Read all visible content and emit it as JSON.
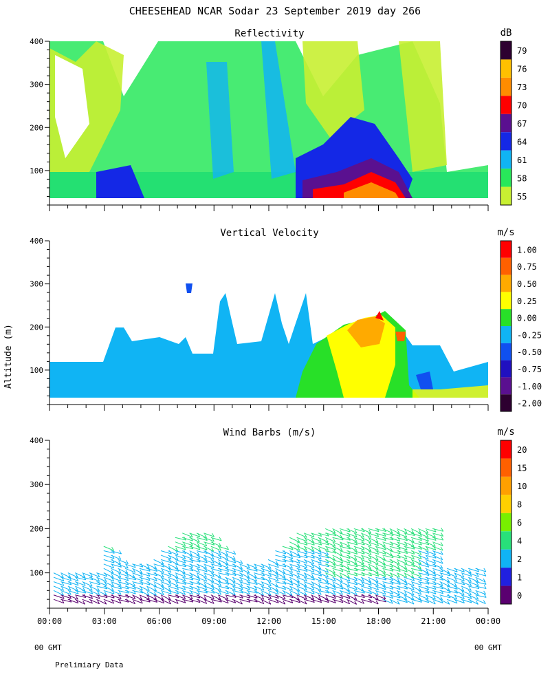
{
  "title": "CHEESEHEAD  NCAR Sodar  23 September 2019  day 266",
  "footer_left": "00 GMT",
  "footer_right": "00 GMT",
  "preliminary": "Prelimiary Data",
  "xlabel": "UTC",
  "ylabel": "Altitude (m)",
  "chart_data": [
    {
      "type": "heatmap",
      "title": "Reflectivity",
      "unit": "dB",
      "x_ticks": [
        "00:00",
        "03:00",
        "06:00",
        "09:00",
        "12:00",
        "15:00",
        "18:00",
        "21:00",
        "00:00"
      ],
      "y_ticks": [
        100,
        200,
        300,
        400
      ],
      "ylim": [
        20,
        400
      ],
      "colorbar": {
        "labels": [
          "79",
          "76",
          "73",
          "70",
          "67",
          "64",
          "61",
          "58",
          "55"
        ],
        "colors": [
          "#2d0030",
          "#ffc000",
          "#ff8c00",
          "#ff0000",
          "#5a1090",
          "#1428e6",
          "#10b4f4",
          "#28e85a",
          "#c8f032"
        ]
      }
    },
    {
      "type": "heatmap",
      "title": "Vertical Velocity",
      "unit": "m/s",
      "y_ticks": [
        100,
        200,
        300,
        400
      ],
      "ylim": [
        20,
        400
      ],
      "colorbar": {
        "labels": [
          "1.00",
          "0.75",
          "0.50",
          "0.25",
          "0.00",
          "-0.25",
          "-0.50",
          "-0.75",
          "-1.00",
          "-2.00"
        ],
        "colors": [
          "#ff0000",
          "#ff6000",
          "#ffaa00",
          "#ffff00",
          "#28e028",
          "#10b4f4",
          "#1050f0",
          "#2010c0",
          "#5a1090",
          "#2d0030"
        ]
      }
    },
    {
      "type": "scatter",
      "title": "Wind Barbs (m/s)",
      "unit": "m/s",
      "y_ticks": [
        100,
        200,
        300,
        400
      ],
      "ylim": [
        20,
        400
      ],
      "colorbar": {
        "labels": [
          "20",
          "15",
          "10",
          "8",
          "6",
          "4",
          "2",
          "1",
          "0"
        ],
        "colors": [
          "#ff0000",
          "#ff6000",
          "#ffa000",
          "#ffd000",
          "#78f000",
          "#28e07a",
          "#10b4f4",
          "#2020e0",
          "#5a0070"
        ]
      }
    }
  ]
}
